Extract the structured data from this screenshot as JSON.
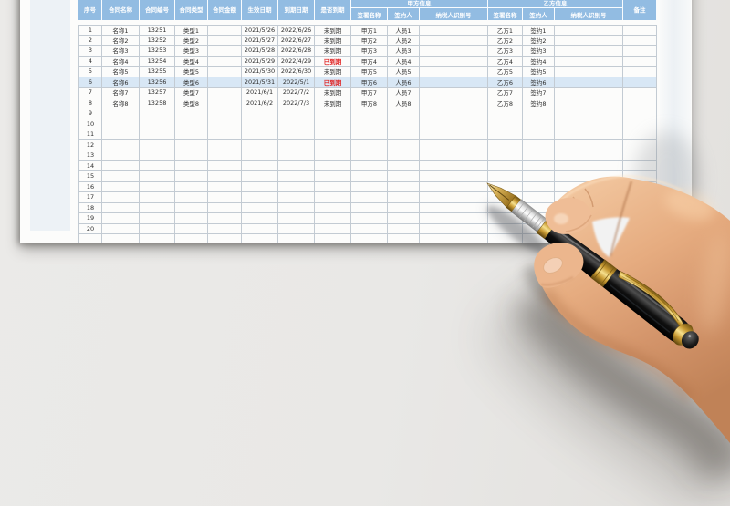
{
  "page": {
    "background_color": "#e9e8e6",
    "paper_color": "#fcfcfb"
  },
  "sheet": {
    "group_headers": {
      "party_a": "甲方信息",
      "party_b": "乙方信息"
    },
    "columns": [
      {
        "key": "index",
        "label": "序号"
      },
      {
        "key": "name",
        "label": "合同名称"
      },
      {
        "key": "code",
        "label": "合同编号"
      },
      {
        "key": "type",
        "label": "合同类型"
      },
      {
        "key": "amount",
        "label": "合同金额"
      },
      {
        "key": "start",
        "label": "生效日期"
      },
      {
        "key": "end",
        "label": "到期日期"
      },
      {
        "key": "status",
        "label": "是否到期"
      },
      {
        "key": "a_name",
        "label": "签署名称",
        "group": "party_a"
      },
      {
        "key": "a_signer",
        "label": "签约人",
        "group": "party_a"
      },
      {
        "key": "a_tax",
        "label": "纳税人识别号",
        "group": "party_a"
      },
      {
        "key": "b_name",
        "label": "签署名称",
        "group": "party_b"
      },
      {
        "key": "b_signer",
        "label": "签约人",
        "group": "party_b"
      },
      {
        "key": "b_tax",
        "label": "纳税人识别号",
        "group": "party_b"
      },
      {
        "key": "remark",
        "label": "备注"
      }
    ],
    "expired_label": "已到期",
    "active_label": "未到期",
    "highlighted_row_index": "6",
    "rows": [
      {
        "index": "1",
        "name": "名称1",
        "code": "13251",
        "type": "类型1",
        "amount": "",
        "start": "2021/5/26",
        "end": "2022/6/26",
        "status": "未到期",
        "a_name": "甲方1",
        "a_signer": "人员1",
        "a_tax": "",
        "b_name": "乙方1",
        "b_signer": "签约1",
        "b_tax": "",
        "remark": ""
      },
      {
        "index": "2",
        "name": "名称2",
        "code": "13252",
        "type": "类型2",
        "amount": "",
        "start": "2021/5/27",
        "end": "2022/6/27",
        "status": "未到期",
        "a_name": "甲方2",
        "a_signer": "人员2",
        "a_tax": "",
        "b_name": "乙方2",
        "b_signer": "签约2",
        "b_tax": "",
        "remark": ""
      },
      {
        "index": "3",
        "name": "名称3",
        "code": "13253",
        "type": "类型3",
        "amount": "",
        "start": "2021/5/28",
        "end": "2022/6/28",
        "status": "未到期",
        "a_name": "甲方3",
        "a_signer": "人员3",
        "a_tax": "",
        "b_name": "乙方3",
        "b_signer": "签约3",
        "b_tax": "",
        "remark": ""
      },
      {
        "index": "4",
        "name": "名称4",
        "code": "13254",
        "type": "类型4",
        "amount": "",
        "start": "2021/5/29",
        "end": "2022/4/29",
        "status": "已到期",
        "a_name": "甲方4",
        "a_signer": "人员4",
        "a_tax": "",
        "b_name": "乙方4",
        "b_signer": "签约4",
        "b_tax": "",
        "remark": ""
      },
      {
        "index": "5",
        "name": "名称5",
        "code": "13255",
        "type": "类型5",
        "amount": "",
        "start": "2021/5/30",
        "end": "2022/6/30",
        "status": "未到期",
        "a_name": "甲方5",
        "a_signer": "人员5",
        "a_tax": "",
        "b_name": "乙方5",
        "b_signer": "签约5",
        "b_tax": "",
        "remark": ""
      },
      {
        "index": "6",
        "name": "名称6",
        "code": "13256",
        "type": "类型6",
        "amount": "",
        "start": "2021/5/31",
        "end": "2022/5/1",
        "status": "已到期",
        "a_name": "甲方6",
        "a_signer": "人员6",
        "a_tax": "",
        "b_name": "乙方6",
        "b_signer": "签约6",
        "b_tax": "",
        "remark": ""
      },
      {
        "index": "7",
        "name": "名称7",
        "code": "13257",
        "type": "类型7",
        "amount": "",
        "start": "2021/6/1",
        "end": "2022/7/2",
        "status": "未到期",
        "a_name": "甲方7",
        "a_signer": "人员7",
        "a_tax": "",
        "b_name": "乙方7",
        "b_signer": "签约7",
        "b_tax": "",
        "remark": ""
      },
      {
        "index": "8",
        "name": "名称8",
        "code": "13258",
        "type": "类型8",
        "amount": "",
        "start": "2021/6/2",
        "end": "2022/7/3",
        "status": "未到期",
        "a_name": "甲方8",
        "a_signer": "人员8",
        "a_tax": "",
        "b_name": "乙方8",
        "b_signer": "签约8",
        "b_tax": "",
        "remark": ""
      },
      {
        "index": "9",
        "name": "",
        "code": "",
        "type": "",
        "amount": "",
        "start": "",
        "end": "",
        "status": "",
        "a_name": "",
        "a_signer": "",
        "a_tax": "",
        "b_name": "",
        "b_signer": "",
        "b_tax": "",
        "remark": ""
      },
      {
        "index": "10",
        "name": "",
        "code": "",
        "type": "",
        "amount": "",
        "start": "",
        "end": "",
        "status": "",
        "a_name": "",
        "a_signer": "",
        "a_tax": "",
        "b_name": "",
        "b_signer": "",
        "b_tax": "",
        "remark": ""
      },
      {
        "index": "11",
        "name": "",
        "code": "",
        "type": "",
        "amount": "",
        "start": "",
        "end": "",
        "status": "",
        "a_name": "",
        "a_signer": "",
        "a_tax": "",
        "b_name": "",
        "b_signer": "",
        "b_tax": "",
        "remark": ""
      },
      {
        "index": "12",
        "name": "",
        "code": "",
        "type": "",
        "amount": "",
        "start": "",
        "end": "",
        "status": "",
        "a_name": "",
        "a_signer": "",
        "a_tax": "",
        "b_name": "",
        "b_signer": "",
        "b_tax": "",
        "remark": ""
      },
      {
        "index": "13",
        "name": "",
        "code": "",
        "type": "",
        "amount": "",
        "start": "",
        "end": "",
        "status": "",
        "a_name": "",
        "a_signer": "",
        "a_tax": "",
        "b_name": "",
        "b_signer": "",
        "b_tax": "",
        "remark": ""
      },
      {
        "index": "14",
        "name": "",
        "code": "",
        "type": "",
        "amount": "",
        "start": "",
        "end": "",
        "status": "",
        "a_name": "",
        "a_signer": "",
        "a_tax": "",
        "b_name": "",
        "b_signer": "",
        "b_tax": "",
        "remark": ""
      },
      {
        "index": "15",
        "name": "",
        "code": "",
        "type": "",
        "amount": "",
        "start": "",
        "end": "",
        "status": "",
        "a_name": "",
        "a_signer": "",
        "a_tax": "",
        "b_name": "",
        "b_signer": "",
        "b_tax": "",
        "remark": ""
      },
      {
        "index": "16",
        "name": "",
        "code": "",
        "type": "",
        "amount": "",
        "start": "",
        "end": "",
        "status": "",
        "a_name": "",
        "a_signer": "",
        "a_tax": "",
        "b_name": "",
        "b_signer": "",
        "b_tax": "",
        "remark": ""
      },
      {
        "index": "17",
        "name": "",
        "code": "",
        "type": "",
        "amount": "",
        "start": "",
        "end": "",
        "status": "",
        "a_name": "",
        "a_signer": "",
        "a_tax": "",
        "b_name": "",
        "b_signer": "",
        "b_tax": "",
        "remark": ""
      },
      {
        "index": "18",
        "name": "",
        "code": "",
        "type": "",
        "amount": "",
        "start": "",
        "end": "",
        "status": "",
        "a_name": "",
        "a_signer": "",
        "a_tax": "",
        "b_name": "",
        "b_signer": "",
        "b_tax": "",
        "remark": ""
      },
      {
        "index": "19",
        "name": "",
        "code": "",
        "type": "",
        "amount": "",
        "start": "",
        "end": "",
        "status": "",
        "a_name": "",
        "a_signer": "",
        "a_tax": "",
        "b_name": "",
        "b_signer": "",
        "b_tax": "",
        "remark": ""
      },
      {
        "index": "20",
        "name": "",
        "code": "",
        "type": "",
        "amount": "",
        "start": "",
        "end": "",
        "status": "",
        "a_name": "",
        "a_signer": "",
        "a_tax": "",
        "b_name": "",
        "b_signer": "",
        "b_tax": "",
        "remark": ""
      }
    ],
    "colors": {
      "header_bg": "#92bce2",
      "header_text": "#ffffff",
      "gridline": "#c3cbd3",
      "highlight_row": "#d8e7f5",
      "expired_red": "#e02020",
      "cell_text": "#2d2d2d"
    }
  },
  "photo": {
    "name": "hand-holding-fountain-pen",
    "skin_color": "#e6ac80",
    "pen_body_color": "#0a0a0a",
    "pen_gold_color": "#c89a32",
    "pen_grip_color": "#e6e6e6"
  }
}
